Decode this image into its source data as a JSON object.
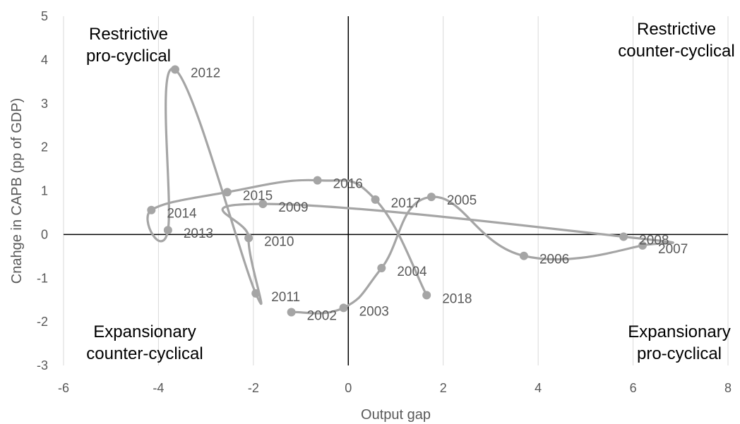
{
  "chart_data": {
    "type": "scatter",
    "xlabel": "Output gap",
    "ylabel": "Cnahge in CAPB (pp of GDP)",
    "xlim": [
      -6,
      8
    ],
    "ylim": [
      -3,
      5
    ],
    "xticks": [
      -6,
      -4,
      -2,
      0,
      2,
      4,
      6,
      8
    ],
    "yticks": [
      -3,
      -2,
      -1,
      0,
      1,
      2,
      3,
      4,
      5
    ],
    "xtick_labels": [
      "-6",
      "-4",
      "-2",
      "0",
      "2",
      "4",
      "6",
      "8"
    ],
    "ytick_labels": [
      "-3",
      "-2",
      "-1",
      "0",
      "1",
      "2",
      "3",
      "4",
      "5"
    ],
    "grid": "vertical",
    "connected": "smooth line in year order",
    "colors": {
      "series": "#a5a5a5",
      "axes": "#000000",
      "grid": "#d9d9d9",
      "text": "#595959"
    },
    "points": [
      {
        "label": "2002",
        "x": -1.2,
        "y": -1.78
      },
      {
        "label": "2003",
        "x": -0.1,
        "y": -1.68
      },
      {
        "label": "2004",
        "x": 0.7,
        "y": -0.77
      },
      {
        "label": "2005",
        "x": 1.75,
        "y": 0.86
      },
      {
        "label": "2006",
        "x": 3.7,
        "y": -0.49
      },
      {
        "label": "2007",
        "x": 6.2,
        "y": -0.25
      },
      {
        "label": "2008",
        "x": 5.8,
        "y": -0.05
      },
      {
        "label": "2009",
        "x": -1.8,
        "y": 0.7
      },
      {
        "label": "2010",
        "x": -2.1,
        "y": -0.08
      },
      {
        "label": "2011",
        "x": -1.95,
        "y": -1.35
      },
      {
        "label": "2012",
        "x": -3.65,
        "y": 3.78
      },
      {
        "label": "2013",
        "x": -3.8,
        "y": 0.1
      },
      {
        "label": "2014",
        "x": -4.15,
        "y": 0.56
      },
      {
        "label": "2015",
        "x": -2.55,
        "y": 0.97
      },
      {
        "label": "2016",
        "x": -0.65,
        "y": 1.24
      },
      {
        "label": "2017",
        "x": 0.57,
        "y": 0.8
      },
      {
        "label": "2018",
        "x": 1.65,
        "y": -1.39
      }
    ]
  },
  "quadrants": {
    "top_left": [
      "Restrictive",
      "pro-cyclical"
    ],
    "top_right": [
      "Restrictive",
      "counter-cyclical"
    ],
    "bottom_left": [
      "Expansionary",
      "counter-cyclical"
    ],
    "bottom_right": [
      "Expansionary",
      "pro-cyclical"
    ]
  }
}
